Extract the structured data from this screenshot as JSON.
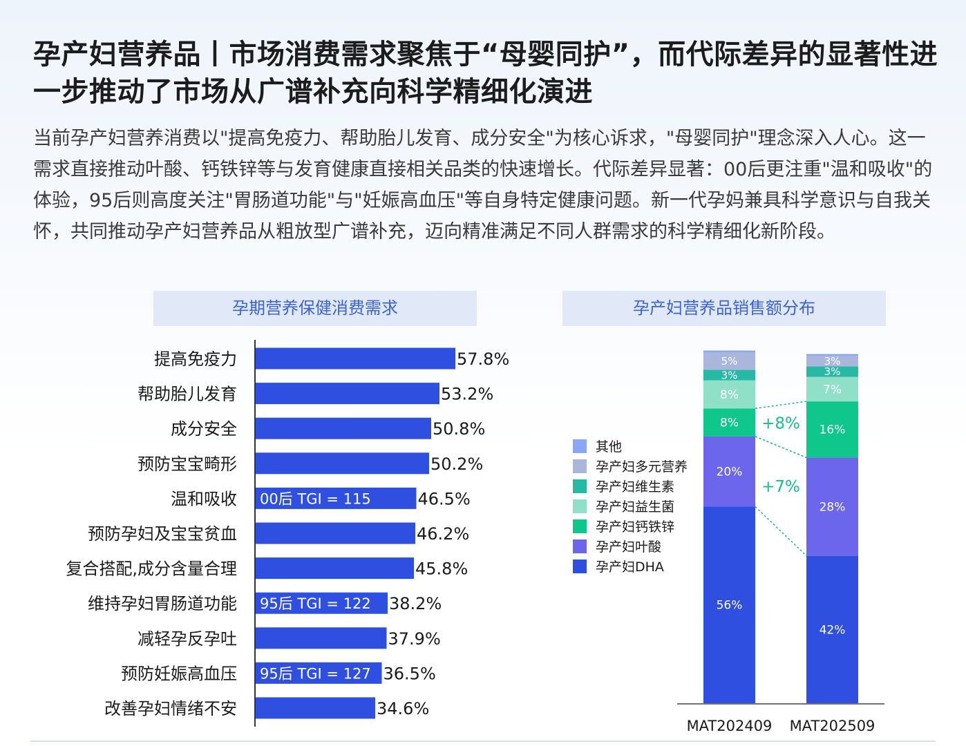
{
  "title": "孕产妇营养品丨市场消费需求聚焦于“母婴同护”，而代际差异的显著性进一步推动了市场从广谱补充向科学精细化演进",
  "description": "当前孕产妇营养消费以\"提高免疫力、帮助胎儿发育、成分安全\"为核心诉求，\"母婴同护\"理念深入人心。这一需求直接推动叶酸、钙铁锌等与发育健康直接相关品类的快速增长。代际差异显著：00后更注重\"温和吸收\"的体验，95后则高度关注\"胃肠道功能\"与\"妊娠高血压\"等自身特定健康问题。新一代孕妈兼具科学意识与自我关怀，共同推动孕产妇营养品从粗放型广谱补充，迈向精准满足不同人群需求的科学精细化新阶段。",
  "colors": {
    "bar": "#2f4fe0",
    "header_bg": "#e1e8f7",
    "header_text": "#3b63d6",
    "accent_green": "#14c08c"
  },
  "chart_data": [
    {
      "type": "bar",
      "orientation": "horizontal",
      "title": "孕期营养保健消费需求",
      "categories": [
        "提高免疫力",
        "帮助胎儿发育",
        "成分安全",
        "预防宝宝畸形",
        "温和吸收",
        "预防孕妇及宝宝贫血",
        "复合搭配,成分含量合理",
        "维持孕妇胃肠道功能",
        "减轻孕反孕吐",
        "预防妊娠高血压",
        "改善孕妇情绪不安"
      ],
      "values": [
        57.8,
        53.2,
        50.8,
        50.2,
        46.5,
        46.2,
        45.8,
        38.2,
        37.9,
        36.5,
        34.6
      ],
      "value_labels": [
        "57.8%",
        "53.2%",
        "50.8%",
        "50.2%",
        "46.5%",
        "46.2%",
        "45.8%",
        "38.2%",
        "37.9%",
        "36.5%",
        "34.6%"
      ],
      "annotations": [
        {
          "category": "温和吸收",
          "text": "00后 TGI = 115"
        },
        {
          "category": "维持孕妇胃肠道功能",
          "text": "95后 TGI = 122"
        },
        {
          "category": "预防妊娠高血压",
          "text": "95后 TGI = 127"
        }
      ],
      "xlim": [
        0,
        100
      ]
    },
    {
      "type": "bar",
      "stacked": true,
      "percent": true,
      "title": "孕产妇营养品销售额分布",
      "categories": [
        "MAT202409",
        "MAT202509"
      ],
      "series": [
        {
          "name": "孕产妇DHA",
          "color": "#2f4fe0",
          "values": [
            56,
            42
          ],
          "labels": [
            "56%",
            "42%"
          ]
        },
        {
          "name": "孕产妇叶酸",
          "color": "#6b66ec",
          "values": [
            20,
            28
          ],
          "labels": [
            "20%",
            "28%"
          ]
        },
        {
          "name": "孕产妇钙铁锌",
          "color": "#0fc78b",
          "values": [
            8,
            16
          ],
          "labels": [
            "8%",
            "16%"
          ]
        },
        {
          "name": "孕产妇益生菌",
          "color": "#8fe0c6",
          "values": [
            8,
            7
          ],
          "labels": [
            "8%",
            "7%"
          ]
        },
        {
          "name": "孕产妇维生素",
          "color": "#27b9a6",
          "values": [
            3,
            3
          ],
          "labels": [
            "3%",
            "3%"
          ]
        },
        {
          "name": "孕产妇多元营养",
          "color": "#aab6dc",
          "values": [
            5,
            3
          ],
          "labels": [
            "5%",
            "3%"
          ]
        },
        {
          "name": "其他",
          "color": "#8aa6f4",
          "values": [
            0.5,
            0.5
          ],
          "labels": [
            "",
            ""
          ]
        }
      ],
      "legend_order": [
        "其他",
        "孕产妇多元营养",
        "孕产妇维生素",
        "孕产妇益生菌",
        "孕产妇钙铁锌",
        "孕产妇叶酸",
        "孕产妇DHA"
      ],
      "legend": "left",
      "annotations": [
        {
          "series": "孕产妇钙铁锌",
          "text": "+8%"
        },
        {
          "series": "孕产妇叶酸",
          "text": "+7%"
        }
      ],
      "ylim": [
        0,
        100
      ]
    }
  ]
}
